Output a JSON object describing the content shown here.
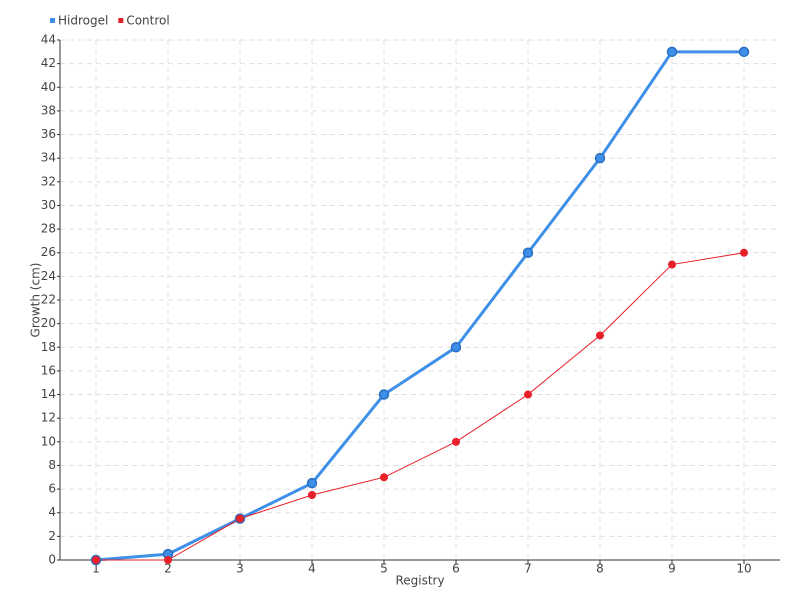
{
  "chart_data": {
    "type": "line",
    "x_label": "Registry",
    "y_label": "Growth (cm)",
    "categories": [
      "1",
      "2",
      "3",
      "4",
      "5",
      "6",
      "7",
      "8",
      "9",
      "10"
    ],
    "series": [
      {
        "name": "Hidrogel",
        "color": "#3d8fe8",
        "values": [
          0,
          0.5,
          3.5,
          6.5,
          14,
          18,
          26,
          34,
          43,
          43
        ]
      },
      {
        "name": "Control",
        "color": "#e8202a",
        "values": [
          0,
          0,
          3.5,
          5.5,
          7,
          10,
          14,
          19,
          25,
          26
        ]
      }
    ],
    "ylim": [
      0,
      44
    ],
    "yticks": [
      0,
      2,
      4,
      6,
      8,
      10,
      12,
      14,
      16,
      18,
      20,
      22,
      24,
      26,
      28,
      30,
      32,
      34,
      36,
      38,
      40,
      42,
      44
    ],
    "grid": true,
    "legend": "top-left"
  }
}
